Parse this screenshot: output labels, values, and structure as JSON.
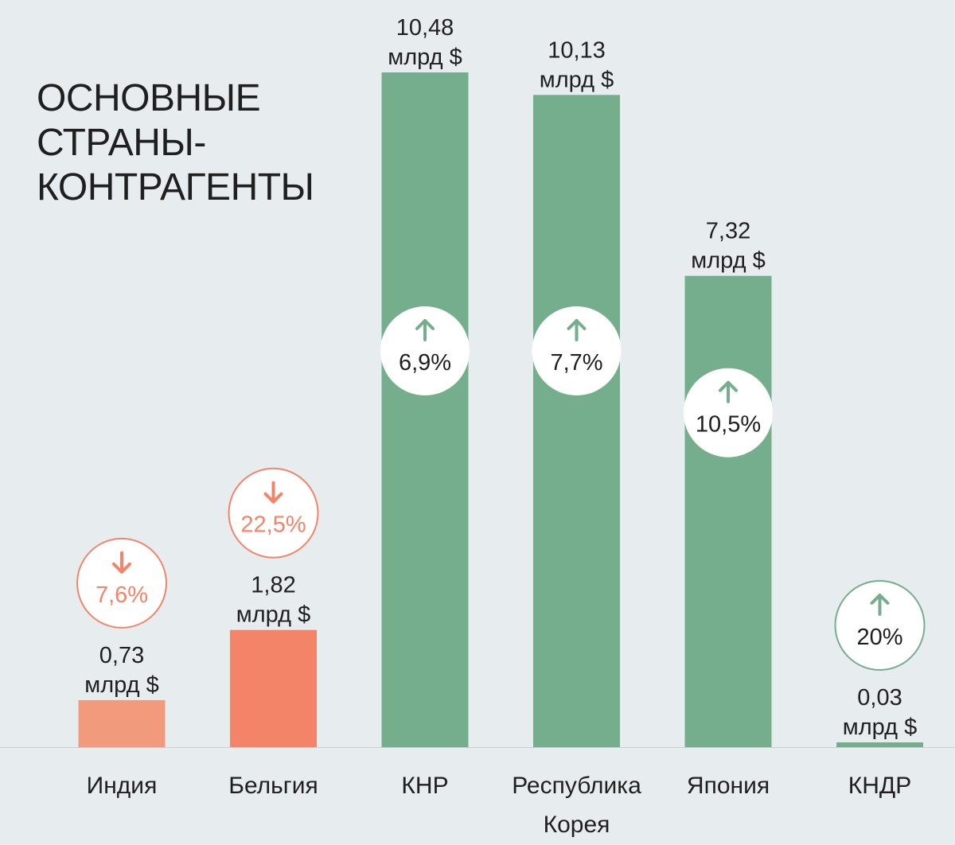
{
  "title": "ОСНОВНЫЕ\nСТРАНЫ-\nКОНТРАГЕНТЫ",
  "chart_data": {
    "type": "bar",
    "categories": [
      "Индия",
      "Бельгия",
      "КНР",
      "Республика\nКорея",
      "Япония",
      "КНДР"
    ],
    "values": [
      0.73,
      1.82,
      10.48,
      10.13,
      7.32,
      0.03
    ],
    "value_labels": [
      "0,73\nмлрд $",
      "1,82\nмлрд $",
      "10,48\nмлрд $",
      "10,13\nмлрд $",
      "7,32\nмлрд $",
      "0,03\nмлрд $"
    ],
    "change_labels": [
      "7,6%",
      "22,5%",
      "6,9%",
      "7,7%",
      "10,5%",
      "20%"
    ],
    "change_direction": [
      "down",
      "down",
      "up",
      "up",
      "up",
      "up"
    ],
    "ylim": [
      0,
      10.48
    ],
    "grid": false,
    "colors": {
      "up": "#75ae8c",
      "down": "#f48468",
      "down_alt": "#f29a7c",
      "badge_fill": "#ffffff",
      "baseline": "#c7cdd1"
    }
  }
}
